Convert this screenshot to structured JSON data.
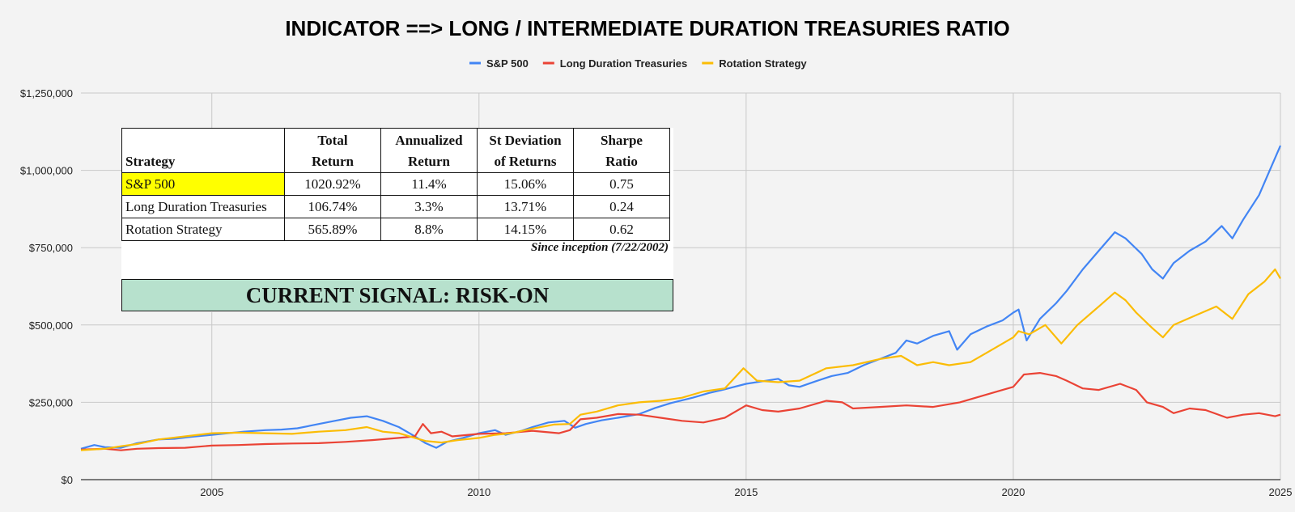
{
  "chart_data": {
    "type": "line",
    "title": "INDICATOR ==> LONG / INTERMEDIATE DURATION TREASURIES RATIO",
    "legend_position": "top",
    "grid": true,
    "xlim": [
      2002.55,
      2025.0
    ],
    "ylim": [
      0,
      1250000
    ],
    "x_ticks": [
      2005,
      2010,
      2015,
      2020,
      2025
    ],
    "x_tick_labels": [
      "2005",
      "2010",
      "2015",
      "2020",
      "2025"
    ],
    "y_ticks": [
      0,
      250000,
      500000,
      750000,
      1000000,
      1250000
    ],
    "y_tick_labels": [
      "$0",
      "$250,000",
      "$500,000",
      "$750,000",
      "$1,000,000",
      "$1,250,000"
    ],
    "series": [
      {
        "name": "S&P 500",
        "color": "#4285f4",
        "points": [
          [
            2002.55,
            100000
          ],
          [
            2002.8,
            112000
          ],
          [
            2003.0,
            105000
          ],
          [
            2003.3,
            103000
          ],
          [
            2003.6,
            118000
          ],
          [
            2004.0,
            130000
          ],
          [
            2004.3,
            132000
          ],
          [
            2004.6,
            138000
          ],
          [
            2005.0,
            145000
          ],
          [
            2005.3,
            150000
          ],
          [
            2005.6,
            155000
          ],
          [
            2006.0,
            160000
          ],
          [
            2006.3,
            162000
          ],
          [
            2006.6,
            166000
          ],
          [
            2007.0,
            180000
          ],
          [
            2007.3,
            190000
          ],
          [
            2007.6,
            200000
          ],
          [
            2007.9,
            205000
          ],
          [
            2008.2,
            190000
          ],
          [
            2008.5,
            170000
          ],
          [
            2008.8,
            140000
          ],
          [
            2009.0,
            118000
          ],
          [
            2009.2,
            103000
          ],
          [
            2009.4,
            122000
          ],
          [
            2009.7,
            135000
          ],
          [
            2010.0,
            150000
          ],
          [
            2010.3,
            160000
          ],
          [
            2010.5,
            145000
          ],
          [
            2010.8,
            158000
          ],
          [
            2011.0,
            170000
          ],
          [
            2011.3,
            185000
          ],
          [
            2011.6,
            190000
          ],
          [
            2011.8,
            168000
          ],
          [
            2012.0,
            180000
          ],
          [
            2012.3,
            192000
          ],
          [
            2012.6,
            200000
          ],
          [
            2013.0,
            212000
          ],
          [
            2013.3,
            232000
          ],
          [
            2013.6,
            248000
          ],
          [
            2014.0,
            265000
          ],
          [
            2014.3,
            280000
          ],
          [
            2014.6,
            292000
          ],
          [
            2015.0,
            310000
          ],
          [
            2015.3,
            318000
          ],
          [
            2015.6,
            326000
          ],
          [
            2015.8,
            305000
          ],
          [
            2016.0,
            300000
          ],
          [
            2016.3,
            318000
          ],
          [
            2016.6,
            335000
          ],
          [
            2016.9,
            345000
          ],
          [
            2017.2,
            370000
          ],
          [
            2017.5,
            390000
          ],
          [
            2017.8,
            410000
          ],
          [
            2018.0,
            450000
          ],
          [
            2018.2,
            440000
          ],
          [
            2018.5,
            465000
          ],
          [
            2018.8,
            480000
          ],
          [
            2018.95,
            420000
          ],
          [
            2019.2,
            470000
          ],
          [
            2019.5,
            495000
          ],
          [
            2019.8,
            515000
          ],
          [
            2020.0,
            540000
          ],
          [
            2020.1,
            550000
          ],
          [
            2020.25,
            450000
          ],
          [
            2020.5,
            520000
          ],
          [
            2020.8,
            570000
          ],
          [
            2021.0,
            610000
          ],
          [
            2021.3,
            680000
          ],
          [
            2021.6,
            740000
          ],
          [
            2021.9,
            800000
          ],
          [
            2022.1,
            780000
          ],
          [
            2022.4,
            730000
          ],
          [
            2022.6,
            680000
          ],
          [
            2022.8,
            650000
          ],
          [
            2023.0,
            700000
          ],
          [
            2023.3,
            740000
          ],
          [
            2023.6,
            770000
          ],
          [
            2023.9,
            820000
          ],
          [
            2024.1,
            780000
          ],
          [
            2024.3,
            840000
          ],
          [
            2024.6,
            920000
          ],
          [
            2024.8,
            1000000
          ],
          [
            2024.95,
            1060000
          ],
          [
            2025.0,
            1080000
          ]
        ]
      },
      {
        "name": "Long Duration Treasuries",
        "color": "#ea4335",
        "points": [
          [
            2002.55,
            97000
          ],
          [
            2003.0,
            100000
          ],
          [
            2003.3,
            95000
          ],
          [
            2003.6,
            100000
          ],
          [
            2004.0,
            102000
          ],
          [
            2004.5,
            103000
          ],
          [
            2005.0,
            110000
          ],
          [
            2005.5,
            112000
          ],
          [
            2006.0,
            115000
          ],
          [
            2006.5,
            117000
          ],
          [
            2007.0,
            118000
          ],
          [
            2007.5,
            122000
          ],
          [
            2008.0,
            128000
          ],
          [
            2008.5,
            135000
          ],
          [
            2008.8,
            140000
          ],
          [
            2008.95,
            180000
          ],
          [
            2009.1,
            150000
          ],
          [
            2009.3,
            155000
          ],
          [
            2009.5,
            140000
          ],
          [
            2010.0,
            148000
          ],
          [
            2010.5,
            150000
          ],
          [
            2011.0,
            158000
          ],
          [
            2011.5,
            150000
          ],
          [
            2011.7,
            160000
          ],
          [
            2011.9,
            195000
          ],
          [
            2012.2,
            200000
          ],
          [
            2012.6,
            212000
          ],
          [
            2013.0,
            210000
          ],
          [
            2013.4,
            200000
          ],
          [
            2013.8,
            190000
          ],
          [
            2014.2,
            185000
          ],
          [
            2014.6,
            200000
          ],
          [
            2015.0,
            240000
          ],
          [
            2015.3,
            225000
          ],
          [
            2015.6,
            220000
          ],
          [
            2016.0,
            230000
          ],
          [
            2016.5,
            255000
          ],
          [
            2016.8,
            250000
          ],
          [
            2017.0,
            230000
          ],
          [
            2017.5,
            235000
          ],
          [
            2018.0,
            240000
          ],
          [
            2018.5,
            235000
          ],
          [
            2019.0,
            250000
          ],
          [
            2019.5,
            275000
          ],
          [
            2019.8,
            290000
          ],
          [
            2020.0,
            300000
          ],
          [
            2020.2,
            340000
          ],
          [
            2020.5,
            345000
          ],
          [
            2020.8,
            335000
          ],
          [
            2021.0,
            320000
          ],
          [
            2021.3,
            295000
          ],
          [
            2021.6,
            290000
          ],
          [
            2022.0,
            310000
          ],
          [
            2022.3,
            290000
          ],
          [
            2022.5,
            250000
          ],
          [
            2022.8,
            235000
          ],
          [
            2023.0,
            215000
          ],
          [
            2023.3,
            230000
          ],
          [
            2023.6,
            225000
          ],
          [
            2024.0,
            200000
          ],
          [
            2024.3,
            210000
          ],
          [
            2024.6,
            215000
          ],
          [
            2024.9,
            205000
          ],
          [
            2025.0,
            210000
          ]
        ]
      },
      {
        "name": "Rotation Strategy",
        "color": "#fbbc04",
        "points": [
          [
            2002.55,
            95000
          ],
          [
            2003.0,
            100000
          ],
          [
            2003.3,
            108000
          ],
          [
            2003.6,
            115000
          ],
          [
            2004.0,
            130000
          ],
          [
            2004.5,
            140000
          ],
          [
            2005.0,
            150000
          ],
          [
            2005.5,
            152000
          ],
          [
            2006.0,
            150000
          ],
          [
            2006.5,
            148000
          ],
          [
            2007.0,
            155000
          ],
          [
            2007.5,
            160000
          ],
          [
            2007.9,
            170000
          ],
          [
            2008.2,
            155000
          ],
          [
            2008.5,
            150000
          ],
          [
            2008.8,
            135000
          ],
          [
            2009.0,
            125000
          ],
          [
            2009.3,
            120000
          ],
          [
            2009.6,
            128000
          ],
          [
            2010.0,
            135000
          ],
          [
            2010.3,
            145000
          ],
          [
            2010.6,
            150000
          ],
          [
            2011.0,
            165000
          ],
          [
            2011.4,
            178000
          ],
          [
            2011.7,
            180000
          ],
          [
            2011.9,
            210000
          ],
          [
            2012.2,
            220000
          ],
          [
            2012.6,
            240000
          ],
          [
            2013.0,
            250000
          ],
          [
            2013.4,
            255000
          ],
          [
            2013.8,
            265000
          ],
          [
            2014.2,
            285000
          ],
          [
            2014.6,
            295000
          ],
          [
            2014.95,
            360000
          ],
          [
            2015.2,
            320000
          ],
          [
            2015.6,
            315000
          ],
          [
            2016.0,
            320000
          ],
          [
            2016.5,
            360000
          ],
          [
            2017.0,
            370000
          ],
          [
            2017.5,
            390000
          ],
          [
            2017.9,
            400000
          ],
          [
            2018.2,
            370000
          ],
          [
            2018.5,
            380000
          ],
          [
            2018.8,
            370000
          ],
          [
            2019.2,
            380000
          ],
          [
            2019.6,
            420000
          ],
          [
            2020.0,
            460000
          ],
          [
            2020.1,
            480000
          ],
          [
            2020.3,
            470000
          ],
          [
            2020.6,
            500000
          ],
          [
            2020.9,
            440000
          ],
          [
            2021.2,
            500000
          ],
          [
            2021.6,
            560000
          ],
          [
            2021.9,
            605000
          ],
          [
            2022.1,
            580000
          ],
          [
            2022.3,
            540000
          ],
          [
            2022.6,
            490000
          ],
          [
            2022.8,
            460000
          ],
          [
            2023.0,
            500000
          ],
          [
            2023.4,
            530000
          ],
          [
            2023.8,
            560000
          ],
          [
            2024.1,
            520000
          ],
          [
            2024.4,
            600000
          ],
          [
            2024.7,
            640000
          ],
          [
            2024.9,
            680000
          ],
          [
            2025.0,
            650000
          ]
        ]
      }
    ]
  },
  "stats_table": {
    "headers": [
      {
        "line1": "",
        "line2": "Strategy"
      },
      {
        "line1": "Total",
        "line2": "Return"
      },
      {
        "line1": "Annualized",
        "line2": "Return"
      },
      {
        "line1": "St Deviation",
        "line2": "of Returns"
      },
      {
        "line1": "Sharpe",
        "line2": "Ratio"
      }
    ],
    "rows": [
      {
        "strategy": "S&P 500",
        "total_return": "1020.92%",
        "annualized_return": "11.4%",
        "st_deviation": "15.06%",
        "sharpe_ratio": "0.75",
        "highlight_color": "#ffff00"
      },
      {
        "strategy": "Long Duration Treasuries",
        "total_return": "106.74%",
        "annualized_return": "3.3%",
        "st_deviation": "13.71%",
        "sharpe_ratio": "0.24"
      },
      {
        "strategy": "Rotation Strategy",
        "total_return": "565.89%",
        "annualized_return": "8.8%",
        "st_deviation": "14.15%",
        "sharpe_ratio": "0.62"
      }
    ],
    "footnote": "Since inception (7/22/2002)"
  },
  "signal": {
    "text": "CURRENT SIGNAL: RISK-ON",
    "background_color": "#b7e1cd"
  }
}
